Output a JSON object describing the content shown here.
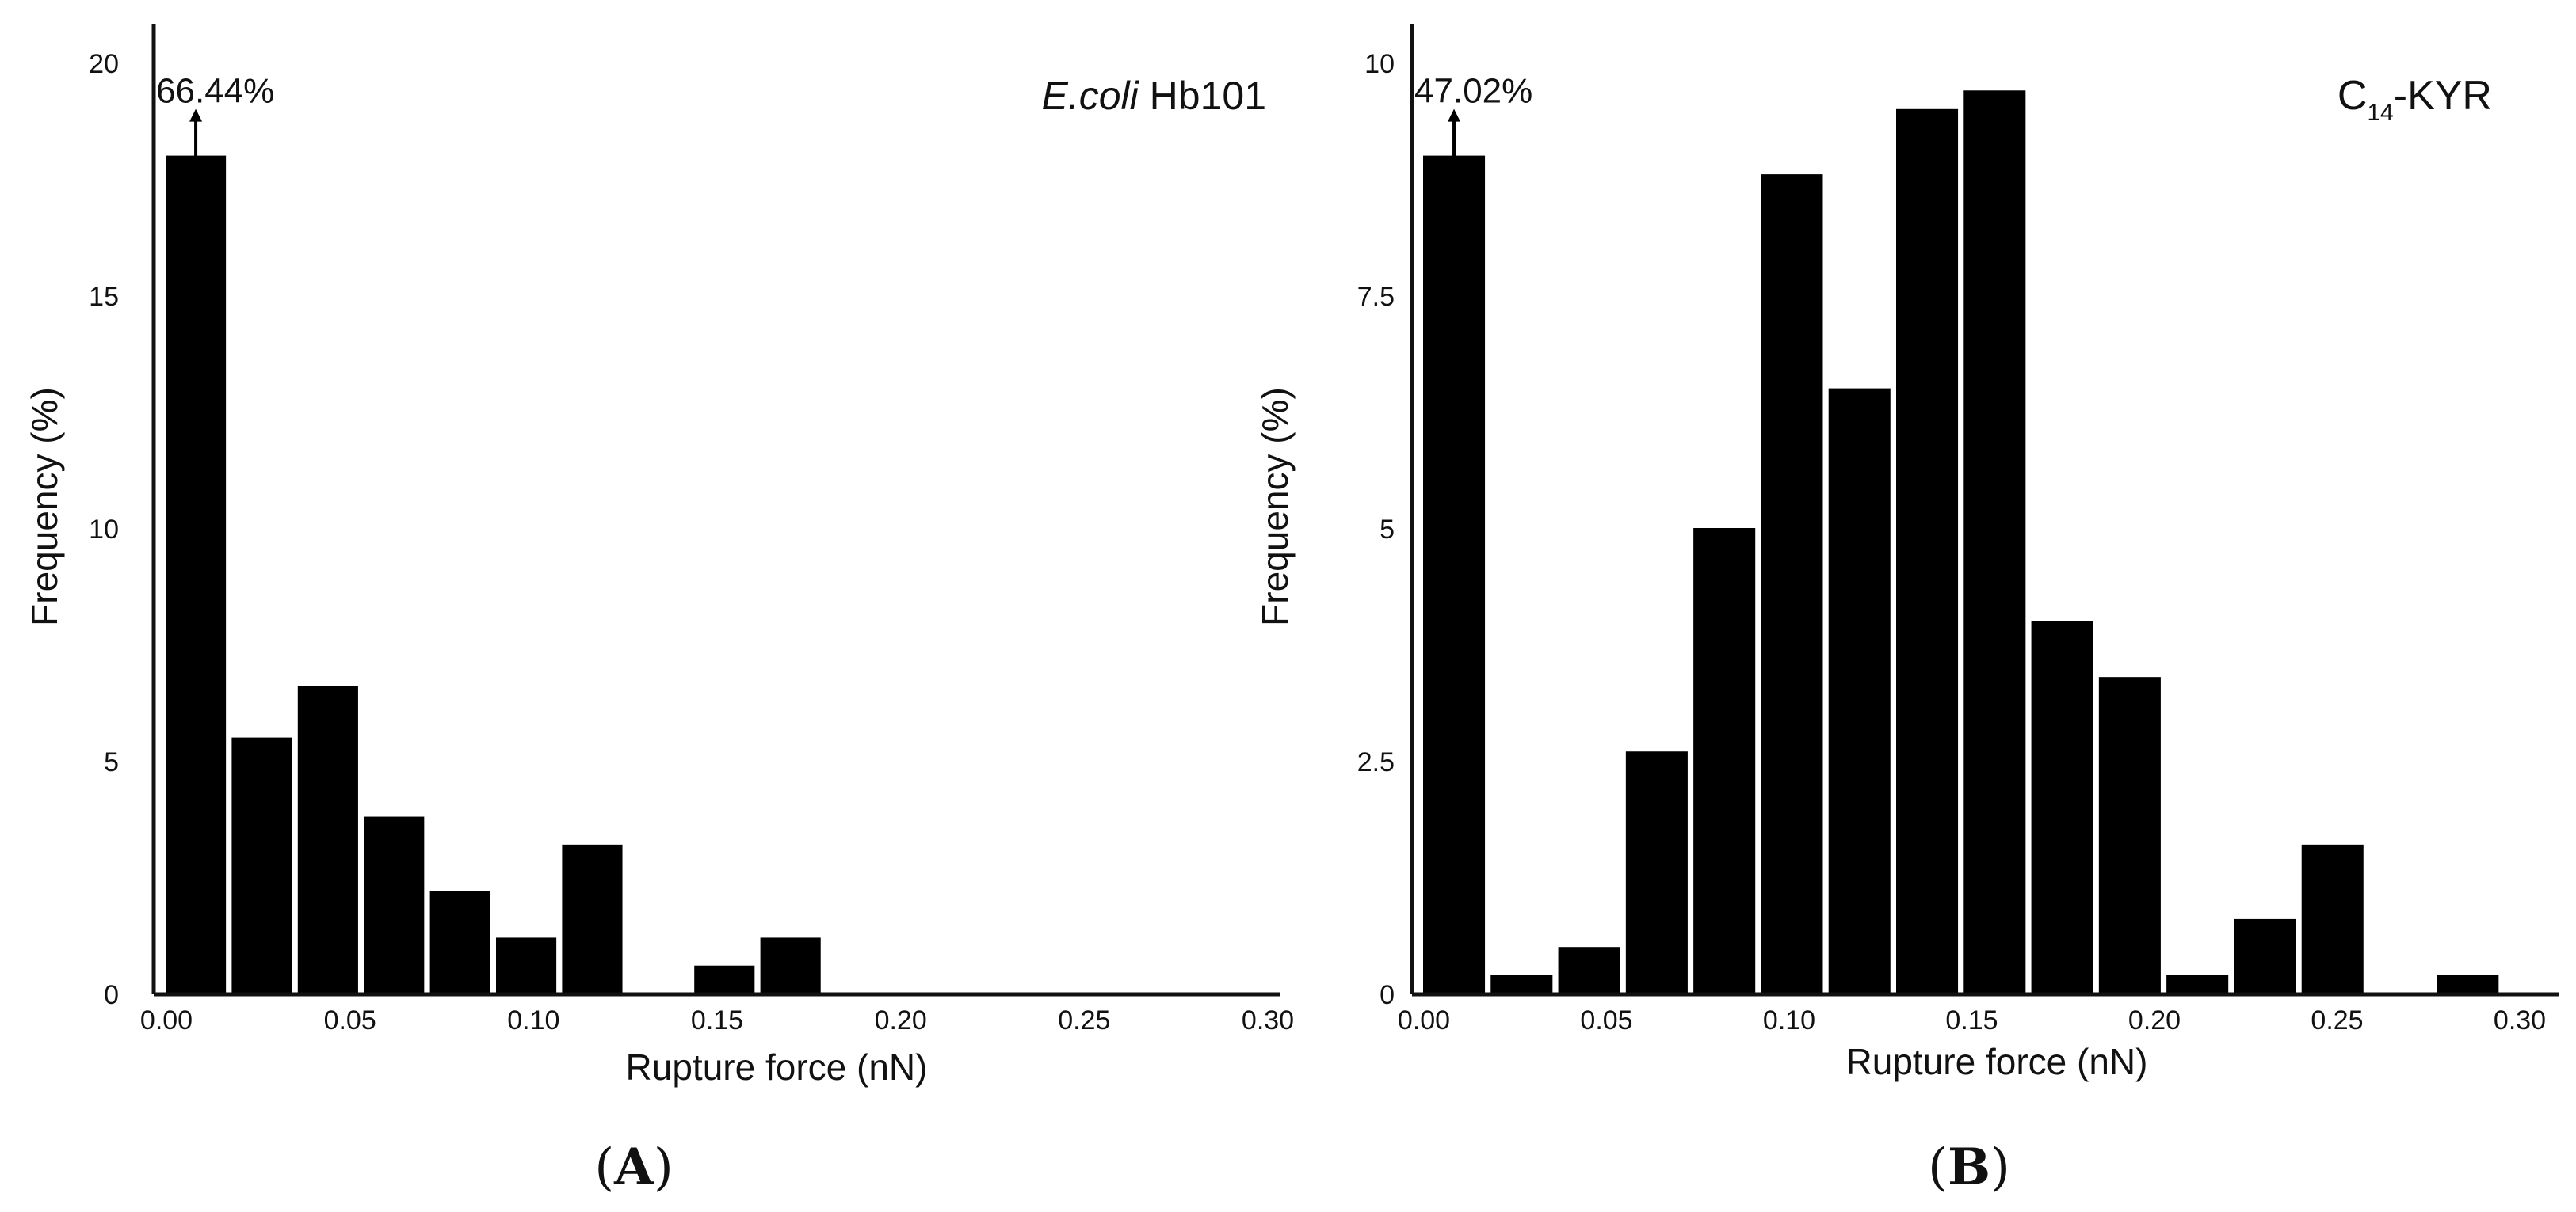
{
  "figure": {
    "panel_labels": [
      {
        "open": "(",
        "letter": "A",
        "close": ")"
      },
      {
        "open": "(",
        "letter": "B",
        "close": ")"
      }
    ]
  },
  "chart_data": [
    {
      "type": "bar",
      "title_italic": "E.coli",
      "title_rest": " Hb101",
      "xlabel": "Rupture force (nN)",
      "ylabel": "Frequency (%)",
      "xlim": [
        0,
        0.3
      ],
      "ylim": [
        0,
        20
      ],
      "xticks": [
        {
          "value": 0.0,
          "label": "0.00"
        },
        {
          "value": 0.05,
          "label": "0.05"
        },
        {
          "value": 0.1,
          "label": "0.10"
        },
        {
          "value": 0.15,
          "label": "0.15"
        },
        {
          "value": 0.2,
          "label": "0.20"
        },
        {
          "value": 0.25,
          "label": "0.25"
        },
        {
          "value": 0.3,
          "label": "0.30"
        }
      ],
      "yticks": [
        {
          "value": 0,
          "label": "0"
        },
        {
          "value": 5,
          "label": "5"
        },
        {
          "value": 10,
          "label": "10"
        },
        {
          "value": 15,
          "label": "15"
        },
        {
          "value": 20,
          "label": "20"
        }
      ],
      "bin_width": 0.016,
      "bins": [
        {
          "x": 0.0,
          "value": 18.0
        },
        {
          "x": 0.018,
          "value": 5.5
        },
        {
          "x": 0.036,
          "value": 6.6
        },
        {
          "x": 0.054,
          "value": 3.8
        },
        {
          "x": 0.072,
          "value": 2.2
        },
        {
          "x": 0.09,
          "value": 1.2
        },
        {
          "x": 0.108,
          "value": 3.2
        },
        {
          "x": 0.144,
          "value": 0.6
        },
        {
          "x": 0.162,
          "value": 1.2
        }
      ],
      "annotation": {
        "text": "66.44%",
        "bin_index": 0
      }
    },
    {
      "type": "bar",
      "title_main": "C",
      "title_sub": "14",
      "title_rest": "-KYR",
      "xlabel": "Rupture force (nN)",
      "ylabel": "Frequency (%)",
      "xlim": [
        0,
        0.3
      ],
      "ylim": [
        0,
        10
      ],
      "xticks": [
        {
          "value": 0.0,
          "label": "0.00"
        },
        {
          "value": 0.05,
          "label": "0.05"
        },
        {
          "value": 0.1,
          "label": "0.10"
        },
        {
          "value": 0.15,
          "label": "0.15"
        },
        {
          "value": 0.2,
          "label": "0.20"
        },
        {
          "value": 0.25,
          "label": "0.25"
        },
        {
          "value": 0.3,
          "label": "0.30"
        }
      ],
      "yticks": [
        {
          "value": 0,
          "label": "0"
        },
        {
          "value": 2.5,
          "label": "2.5"
        },
        {
          "value": 5,
          "label": "5"
        },
        {
          "value": 7.5,
          "label": "7.5"
        },
        {
          "value": 10,
          "label": "10"
        }
      ],
      "bin_width": 0.0165,
      "bins": [
        {
          "x": 0.0,
          "value": 9.0
        },
        {
          "x": 0.0185,
          "value": 0.2
        },
        {
          "x": 0.037,
          "value": 0.5
        },
        {
          "x": 0.0555,
          "value": 2.6
        },
        {
          "x": 0.074,
          "value": 5.0
        },
        {
          "x": 0.0925,
          "value": 8.8
        },
        {
          "x": 0.111,
          "value": 6.5
        },
        {
          "x": 0.1295,
          "value": 9.5
        },
        {
          "x": 0.148,
          "value": 9.7
        },
        {
          "x": 0.1665,
          "value": 4.0
        },
        {
          "x": 0.185,
          "value": 3.4
        },
        {
          "x": 0.2035,
          "value": 0.2
        },
        {
          "x": 0.222,
          "value": 0.8
        },
        {
          "x": 0.2405,
          "value": 1.6
        },
        {
          "x": 0.2775,
          "value": 0.2
        }
      ],
      "annotation": {
        "text": "47.02%",
        "bin_index": 0
      }
    }
  ]
}
